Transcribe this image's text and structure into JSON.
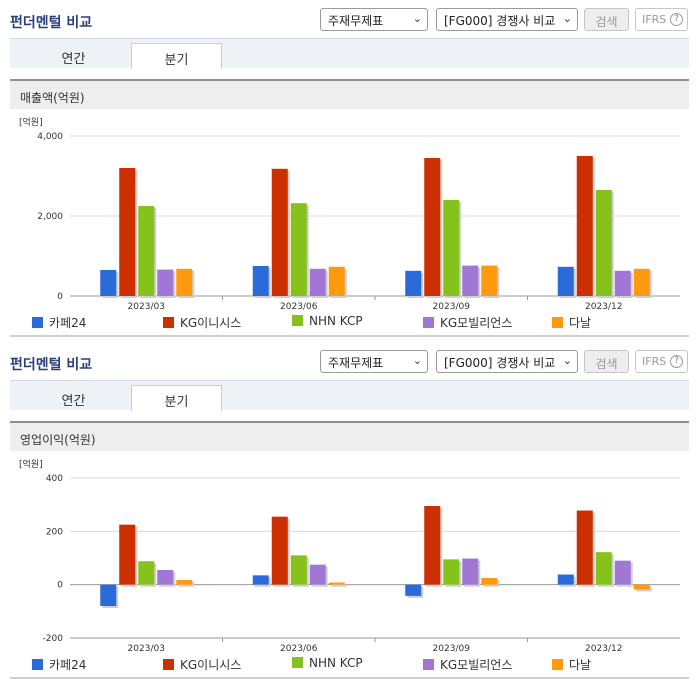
{
  "sections": [
    {
      "title": "펀더멘털 비교",
      "select1": "주재무제표",
      "select2": "[FG000] 경쟁사 비교",
      "search_label": "검색",
      "ifrs_label": "IFRS",
      "ifrs_help": "?",
      "tabs": [
        "연간",
        "분기"
      ],
      "active_tab": "분기",
      "metric": "매출액(억원)"
    },
    {
      "title": "펀더멘털 비교",
      "select1": "주재무제표",
      "select2": "[FG000] 경쟁사 비교",
      "search_label": "검색",
      "ifrs_label": "IFRS",
      "ifrs_help": "?",
      "tabs": [
        "연간",
        "분기"
      ],
      "active_tab": "분기",
      "metric": "영업이익(억원)"
    }
  ],
  "colors": {
    "series": [
      "#2b6ad9",
      "#cc2f00",
      "#86c21c",
      "#a077d4",
      "#ff9a0e"
    ],
    "title": "#2b3f7a"
  },
  "icons": {
    "select_chevron": "chevron-down-icon",
    "ifrs_help": "question-circle-icon"
  },
  "chart_data": [
    {
      "type": "bar",
      "unit_label": "[억원]",
      "categories": [
        "2023/03",
        "2023/06",
        "2023/09",
        "2023/12"
      ],
      "ylim": [
        0,
        4000
      ],
      "yticks": [
        0,
        2000,
        4000
      ],
      "ytick_labels": [
        "0",
        "2,000",
        "4,000"
      ],
      "grid": true,
      "legend_position": "bottom",
      "series": [
        {
          "name": "카페24",
          "values": [
            650,
            750,
            630,
            730
          ]
        },
        {
          "name": "KG이니시스",
          "values": [
            3200,
            3180,
            3450,
            3500
          ]
        },
        {
          "name": "NHN KCP",
          "values": [
            2250,
            2320,
            2400,
            2650
          ]
        },
        {
          "name": "KG모빌리언스",
          "values": [
            660,
            680,
            760,
            630
          ]
        },
        {
          "name": "다날",
          "values": [
            680,
            730,
            760,
            680
          ]
        }
      ]
    },
    {
      "type": "bar",
      "unit_label": "[억원]",
      "categories": [
        "2023/03",
        "2023/06",
        "2023/09",
        "2023/12"
      ],
      "ylim": [
        -200,
        400
      ],
      "yticks": [
        -200,
        0,
        200,
        400
      ],
      "ytick_labels": [
        "-200",
        "0",
        "200",
        "400"
      ],
      "grid": true,
      "legend_position": "bottom",
      "series": [
        {
          "name": "카페24",
          "values": [
            -80,
            35,
            -42,
            38
          ]
        },
        {
          "name": "KG이니시스",
          "values": [
            225,
            255,
            295,
            278
          ]
        },
        {
          "name": "NHN KCP",
          "values": [
            88,
            110,
            95,
            122
          ]
        },
        {
          "name": "KG모빌리언스",
          "values": [
            55,
            75,
            98,
            90
          ]
        },
        {
          "name": "다날",
          "values": [
            18,
            8,
            25,
            -18
          ]
        }
      ]
    }
  ]
}
